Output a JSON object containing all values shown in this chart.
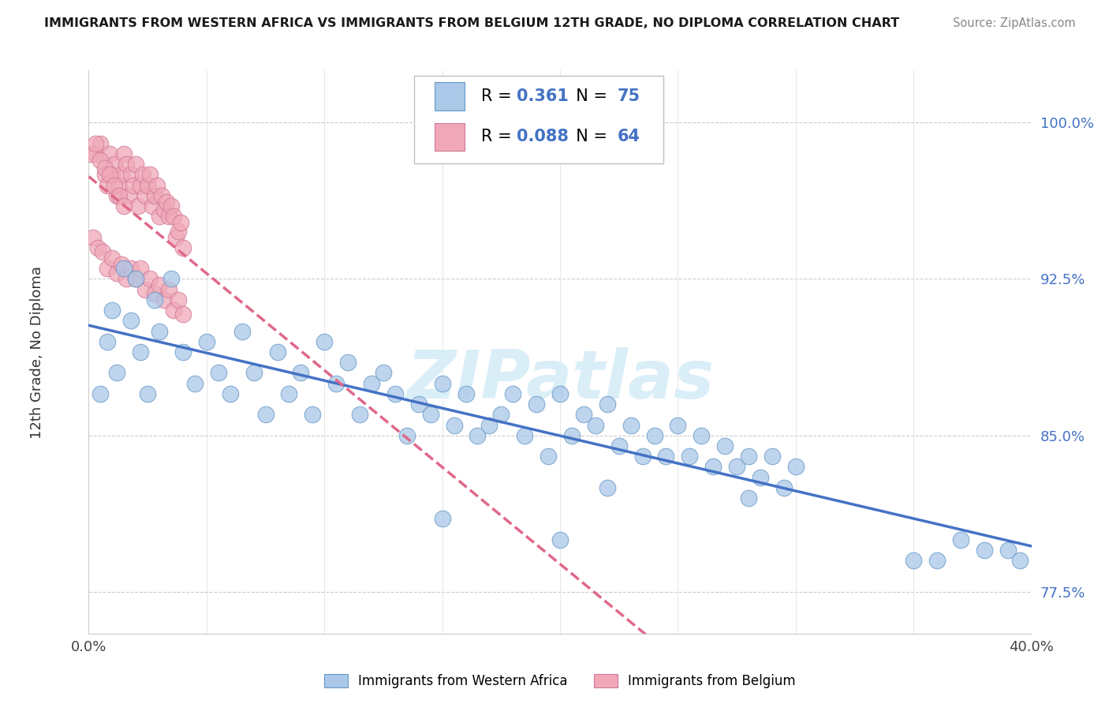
{
  "title": "IMMIGRANTS FROM WESTERN AFRICA VS IMMIGRANTS FROM BELGIUM 12TH GRADE, NO DIPLOMA CORRELATION CHART",
  "source": "Source: ZipAtlas.com",
  "ylabel": "12th Grade, No Diploma",
  "xlim": [
    0.0,
    0.4
  ],
  "ylim": [
    0.755,
    1.025
  ],
  "yticks": [
    0.775,
    0.85,
    0.925,
    1.0
  ],
  "ytick_labels": [
    "77.5%",
    "85.0%",
    "92.5%",
    "100.0%"
  ],
  "xticks": [
    0.0,
    0.05,
    0.1,
    0.15,
    0.2,
    0.25,
    0.3,
    0.35,
    0.4
  ],
  "blue_color": "#aac8e8",
  "pink_color": "#f0a8b8",
  "blue_line_color": "#4472c4",
  "pink_line_color": "#e06888",
  "legend_color": "#4472c4",
  "blue_r": 0.361,
  "blue_n": 75,
  "pink_r": 0.088,
  "pink_n": 64,
  "watermark": "ZIPatlas",
  "label_blue": "Immigrants from Western Africa",
  "label_pink": "Immigrants from Belgium",
  "blue_x": [
    0.005,
    0.008,
    0.01,
    0.012,
    0.015,
    0.018,
    0.02,
    0.022,
    0.025,
    0.028,
    0.03,
    0.035,
    0.04,
    0.045,
    0.05,
    0.055,
    0.06,
    0.065,
    0.07,
    0.075,
    0.08,
    0.085,
    0.09,
    0.095,
    0.1,
    0.105,
    0.11,
    0.115,
    0.12,
    0.125,
    0.13,
    0.135,
    0.14,
    0.145,
    0.15,
    0.155,
    0.16,
    0.165,
    0.17,
    0.175,
    0.18,
    0.185,
    0.19,
    0.195,
    0.2,
    0.205,
    0.21,
    0.215,
    0.22,
    0.225,
    0.23,
    0.235,
    0.24,
    0.245,
    0.25,
    0.255,
    0.26,
    0.265,
    0.27,
    0.275,
    0.28,
    0.285,
    0.29,
    0.295,
    0.3,
    0.15,
    0.2,
    0.22,
    0.28,
    0.35,
    0.36,
    0.37,
    0.38,
    0.39,
    0.395
  ],
  "blue_y": [
    0.87,
    0.895,
    0.91,
    0.88,
    0.93,
    0.905,
    0.925,
    0.89,
    0.87,
    0.915,
    0.9,
    0.925,
    0.89,
    0.875,
    0.895,
    0.88,
    0.87,
    0.9,
    0.88,
    0.86,
    0.89,
    0.87,
    0.88,
    0.86,
    0.895,
    0.875,
    0.885,
    0.86,
    0.875,
    0.88,
    0.87,
    0.85,
    0.865,
    0.86,
    0.875,
    0.855,
    0.87,
    0.85,
    0.855,
    0.86,
    0.87,
    0.85,
    0.865,
    0.84,
    0.87,
    0.85,
    0.86,
    0.855,
    0.865,
    0.845,
    0.855,
    0.84,
    0.85,
    0.84,
    0.855,
    0.84,
    0.85,
    0.835,
    0.845,
    0.835,
    0.84,
    0.83,
    0.84,
    0.825,
    0.835,
    0.81,
    0.8,
    0.825,
    0.82,
    0.79,
    0.79,
    0.8,
    0.795,
    0.795,
    0.79
  ],
  "pink_x": [
    0.003,
    0.005,
    0.007,
    0.008,
    0.009,
    0.01,
    0.011,
    0.012,
    0.013,
    0.014,
    0.015,
    0.016,
    0.017,
    0.018,
    0.019,
    0.02,
    0.021,
    0.022,
    0.023,
    0.024,
    0.025,
    0.026,
    0.027,
    0.028,
    0.029,
    0.03,
    0.031,
    0.032,
    0.033,
    0.034,
    0.035,
    0.036,
    0.037,
    0.038,
    0.039,
    0.04,
    0.002,
    0.004,
    0.006,
    0.008,
    0.01,
    0.012,
    0.014,
    0.016,
    0.018,
    0.02,
    0.022,
    0.024,
    0.026,
    0.028,
    0.03,
    0.032,
    0.034,
    0.036,
    0.038,
    0.04,
    0.001,
    0.003,
    0.005,
    0.007,
    0.009,
    0.011,
    0.013,
    0.015
  ],
  "pink_y": [
    0.985,
    0.99,
    0.975,
    0.97,
    0.985,
    0.975,
    0.98,
    0.965,
    0.97,
    0.975,
    0.985,
    0.98,
    0.965,
    0.975,
    0.97,
    0.98,
    0.96,
    0.97,
    0.975,
    0.965,
    0.97,
    0.975,
    0.96,
    0.965,
    0.97,
    0.955,
    0.965,
    0.958,
    0.962,
    0.955,
    0.96,
    0.955,
    0.945,
    0.948,
    0.952,
    0.94,
    0.945,
    0.94,
    0.938,
    0.93,
    0.935,
    0.928,
    0.932,
    0.925,
    0.93,
    0.925,
    0.93,
    0.92,
    0.925,
    0.918,
    0.922,
    0.915,
    0.92,
    0.91,
    0.915,
    0.908,
    0.985,
    0.99,
    0.982,
    0.978,
    0.975,
    0.97,
    0.965,
    0.96
  ]
}
